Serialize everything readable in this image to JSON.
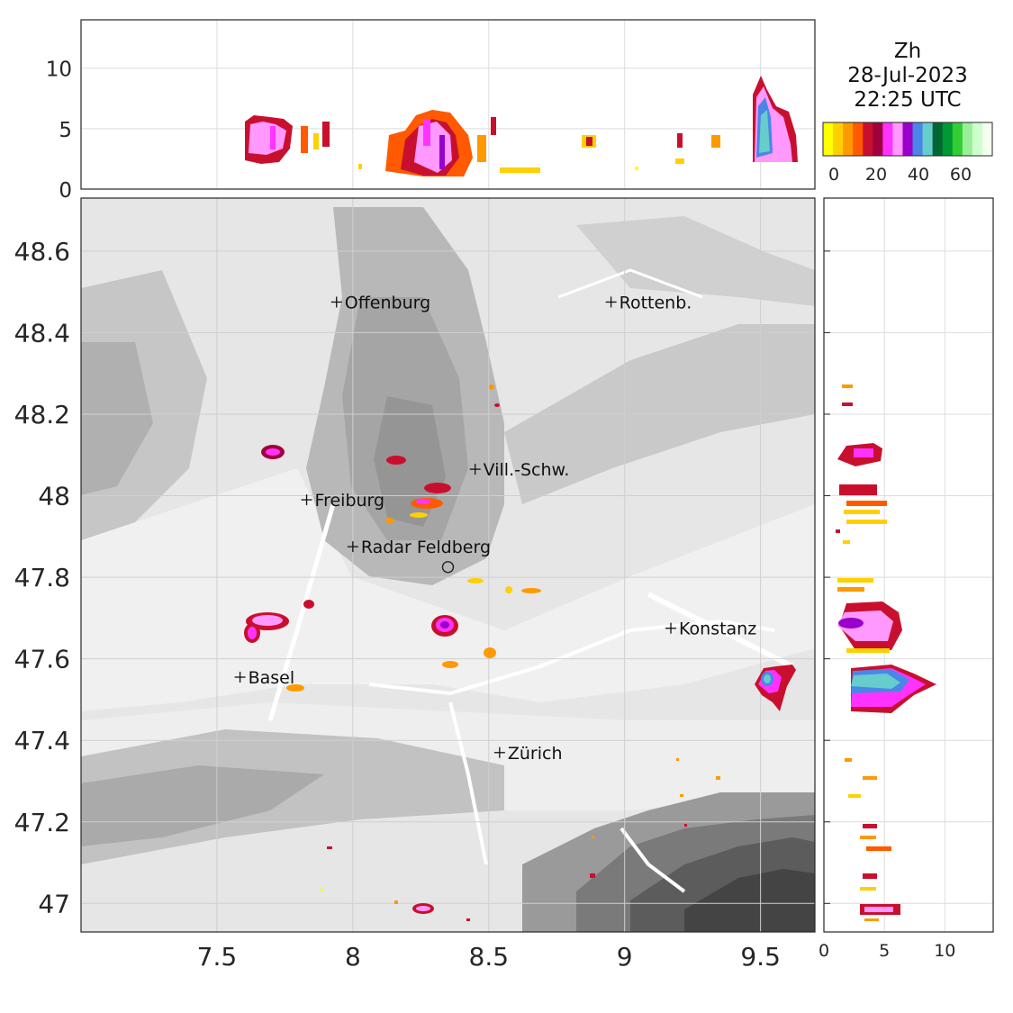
{
  "header": {
    "variable": "Zh",
    "date": "28-Jul-2023",
    "time": "22:25 UTC"
  },
  "colorbar": {
    "ticks": [
      "0",
      "20",
      "40",
      "60"
    ],
    "colors": [
      "#ffff00",
      "#ffd000",
      "#ff9900",
      "#ff5a00",
      "#c8102e",
      "#a0003c",
      "#ff33ff",
      "#ff99ff",
      "#9900cc",
      "#4a86e8",
      "#66cccc",
      "#006633",
      "#009933",
      "#33cc33",
      "#99ee99",
      "#ccffcc",
      "#f5fff0"
    ]
  },
  "map": {
    "x_ticks": [
      "7.5",
      "8",
      "8.5",
      "9",
      "9.5"
    ],
    "y_ticks": [
      "48.6",
      "48.4",
      "48.2",
      "48",
      "47.8",
      "47.6",
      "47.4",
      "47.2",
      "47"
    ],
    "xlim": [
      7.0,
      9.7
    ],
    "ylim": [
      46.93,
      48.73
    ],
    "cities": [
      {
        "name": "Offenburg",
        "lon": 7.94,
        "lat": 48.475
      },
      {
        "name": "Rottenb.",
        "lon": 8.95,
        "lat": 48.475
      },
      {
        "name": "Vill.-Schw.",
        "lon": 8.45,
        "lat": 48.065
      },
      {
        "name": "Freiburg",
        "lon": 7.83,
        "lat": 47.99
      },
      {
        "name": "Radar Feldberg",
        "lon": 8.0,
        "lat": 47.875
      },
      {
        "name": "Konstanz",
        "lon": 9.17,
        "lat": 47.675
      },
      {
        "name": "Basel",
        "lon": 7.585,
        "lat": 47.555
      },
      {
        "name": "Zürich",
        "lon": 8.54,
        "lat": 47.37
      }
    ],
    "radar_site": {
      "lon": 8.35,
      "lat": 47.825
    }
  },
  "top_panel": {
    "y_ticks": [
      "0",
      "5",
      "10"
    ],
    "ylim": [
      0,
      14
    ]
  },
  "right_panel": {
    "x_ticks": [
      "0",
      "5",
      "10"
    ],
    "xlim": [
      0,
      14
    ]
  }
}
